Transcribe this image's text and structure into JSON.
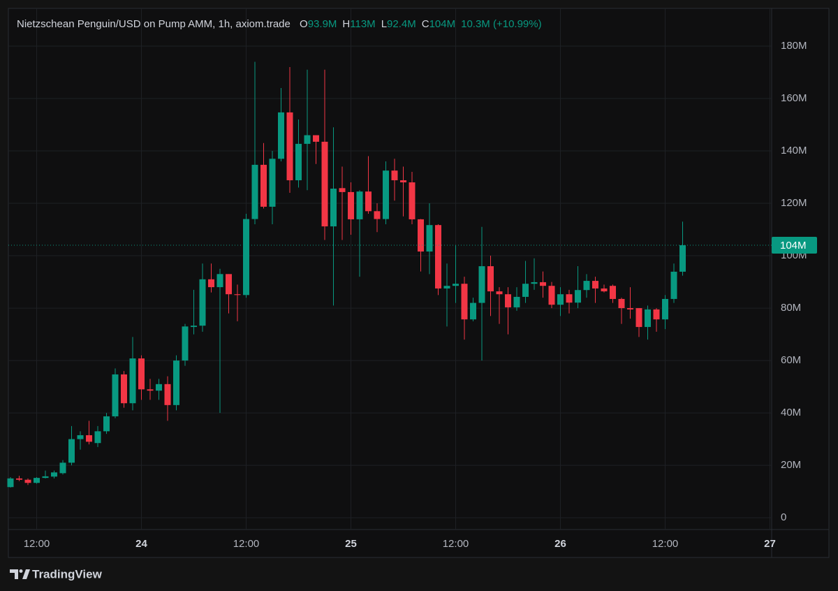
{
  "chart_data": {
    "type": "candlestick",
    "title": "Nietzschean Penguin/USD on Pump AMM, 1h, axiom.trade",
    "header_stats": [
      {
        "name": "O",
        "value": 93.9,
        "label": "93.9M"
      },
      {
        "name": "H",
        "value": 113,
        "label": "113M"
      },
      {
        "name": "L",
        "value": 92.4,
        "label": "92.4M"
      },
      {
        "name": "C",
        "value": 104,
        "label": "104M"
      }
    ],
    "change": {
      "value": 10.3,
      "label": "10.3M (+10.99%)"
    },
    "last_price": {
      "value": 104,
      "label": "104M"
    },
    "brand": "TradingView",
    "up_color": "#089981",
    "down_color": "#f23645",
    "grid": true,
    "xlim": [
      -0.24,
      87.2
    ],
    "xticks": [
      {
        "value": 3,
        "label": "12:00"
      },
      {
        "value": 15,
        "label": "24"
      },
      {
        "value": 27,
        "label": "12:00"
      },
      {
        "value": 39,
        "label": "25"
      },
      {
        "value": 51,
        "label": "12:00"
      },
      {
        "value": 63,
        "label": "26"
      },
      {
        "value": 75,
        "label": "12:00"
      },
      {
        "value": 87,
        "label": "27"
      }
    ],
    "ylim": [
      -4.5,
      194.4
    ],
    "yticks": [
      0,
      {
        "value": 20,
        "label": "20M"
      },
      {
        "value": 40,
        "label": "40M"
      },
      {
        "value": 60,
        "label": "60M"
      },
      {
        "value": 80,
        "label": "80M"
      },
      {
        "value": 100,
        "label": "100M"
      },
      {
        "value": 120,
        "label": "120M"
      },
      {
        "value": 140,
        "label": "140M"
      },
      {
        "value": 160,
        "label": "160M"
      },
      {
        "value": 180,
        "label": "180M"
      }
    ],
    "open": [
      11.7,
      15,
      14.5,
      13.3,
      15.2,
      15.7,
      17,
      21,
      30,
      31.5,
      28.5,
      33,
      38.7,
      54.7,
      43.7,
      60.8,
      49,
      48.5,
      51,
      43,
      60,
      72.8,
      73.3,
      91,
      88,
      93,
      85.3,
      85,
      114,
      134.7,
      118.7,
      137,
      154.7,
      128.8,
      142.7,
      146,
      143.5,
      111.2,
      125.8,
      124.3,
      113.9,
      124.5,
      117,
      114,
      132.5,
      128.8,
      128,
      113.9,
      101.6,
      111.7,
      87.5,
      88.5,
      89.3,
      75.7,
      82,
      96,
      86.4,
      85.3,
      80.3,
      84.3,
      89.3,
      89.9,
      88.5,
      81.3,
      85.3,
      82.1,
      86.9,
      90.4,
      87.5,
      88.5,
      83.5,
      80,
      80,
      72.8,
      79.5,
      75.7,
      83.5,
      93.9
    ],
    "high": [
      15.5,
      16,
      15,
      15.5,
      18,
      18,
      22,
      35,
      33,
      37,
      35,
      40,
      57,
      56,
      69,
      62,
      53,
      53,
      54,
      62,
      74,
      87,
      97,
      97,
      95,
      93,
      89,
      116,
      174,
      143,
      140,
      164,
      172,
      152,
      171,
      146,
      171,
      149,
      134,
      128,
      125,
      138,
      120,
      136,
      137,
      134,
      132,
      114,
      120,
      112,
      97,
      104,
      92,
      84,
      111,
      100,
      88,
      88,
      88,
      98,
      99,
      94,
      90,
      88,
      87,
      96,
      93,
      92,
      89,
      89,
      84,
      88,
      80,
      81,
      80,
      85,
      97,
      113
    ],
    "low": [
      11.5,
      14,
      12.5,
      13,
      15,
      15,
      16.5,
      20,
      26,
      28,
      27,
      32,
      38,
      42,
      41,
      45,
      45,
      45,
      37,
      41,
      58,
      70,
      71,
      86,
      40,
      78,
      75,
      84,
      112,
      118,
      112,
      136,
      124,
      126,
      125,
      135,
      106,
      81,
      106,
      108,
      92,
      116,
      109,
      112,
      121,
      115,
      112,
      94,
      93,
      85,
      73,
      82,
      68,
      75,
      60,
      77,
      74,
      70,
      79,
      82,
      87,
      84,
      80,
      77,
      78,
      80,
      84,
      82,
      86,
      82,
      74,
      76,
      69,
      68,
      71,
      72,
      82,
      92.4
    ],
    "close": [
      15,
      14.5,
      13.3,
      15.2,
      15.8,
      17.3,
      21,
      30,
      31.5,
      29,
      33,
      38.7,
      54.7,
      43.7,
      60.8,
      49,
      48.5,
      51,
      43,
      60,
      73,
      73.3,
      91,
      88,
      93,
      85.3,
      85,
      114,
      134.7,
      118.7,
      137,
      154.7,
      128.8,
      142.7,
      146,
      143.5,
      111.2,
      125.6,
      124.3,
      113.9,
      124.5,
      117,
      114,
      132.5,
      128.8,
      128,
      113.9,
      101.6,
      111.7,
      87.5,
      88.5,
      89.3,
      75.7,
      82,
      96,
      86.4,
      85.3,
      80.3,
      84.3,
      89.3,
      89.9,
      88.5,
      81.3,
      85.3,
      82.1,
      86.9,
      90.4,
      87.5,
      86.4,
      83.5,
      80,
      79.5,
      72.8,
      79.5,
      75.7,
      83.5,
      93.9,
      104
    ]
  }
}
